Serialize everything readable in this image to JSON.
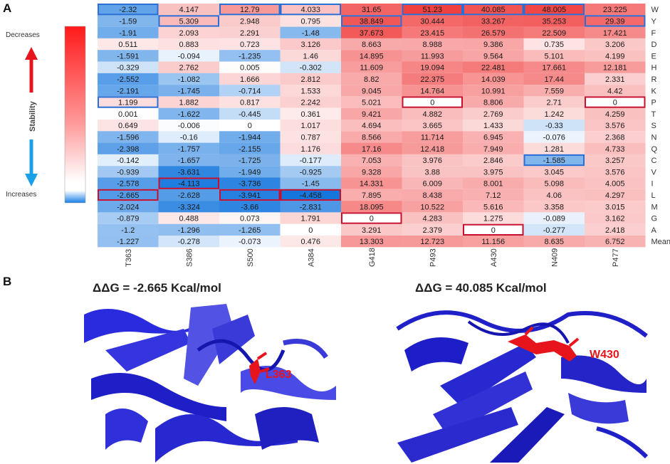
{
  "panels": {
    "a": "A",
    "b": "B"
  },
  "colorbar": {
    "top_label": "Decreases",
    "bottom_label": "Increases",
    "axis_label": "Stability",
    "colors": {
      "high": "#ff1a1a",
      "mid": "#ffffff",
      "low": "#1a7fe6"
    }
  },
  "chart_data": {
    "type": "heatmap",
    "columns": [
      "T363",
      "S386",
      "S500",
      "A384",
      "G418",
      "P493",
      "A430",
      "N409",
      "P477"
    ],
    "rows": [
      "W",
      "Y",
      "F",
      "D",
      "E",
      "H",
      "R",
      "K",
      "P",
      "T",
      "S",
      "N",
      "Q",
      "C",
      "V",
      "I",
      "L",
      "M",
      "G",
      "A",
      "Mean"
    ],
    "values": [
      [
        "-2.32",
        "4.147",
        "12.79",
        "4.033",
        "31.65",
        "51.23",
        "40.085",
        "48.005",
        "23.225"
      ],
      [
        "-1.59",
        "5.309",
        "2.948",
        "0.795",
        "38.849",
        "30.444",
        "33.267",
        "35.253",
        "29.39"
      ],
      [
        "-1.91",
        "2.093",
        "2.291",
        "-1.48",
        "37.673",
        "23.415",
        "26.579",
        "22.509",
        "17.421"
      ],
      [
        "0.511",
        "0.883",
        "0.723",
        "3.126",
        "8.663",
        "8.988",
        "9.386",
        "0.735",
        "3.206"
      ],
      [
        "-1.591",
        "-0.094",
        "-1.235",
        "1.46",
        "14.895",
        "11.993",
        "9.564",
        "5.101",
        "4.199"
      ],
      [
        "-0.329",
        "2.762",
        "0.005",
        "-0.302",
        "11.609",
        "19.094",
        "22.481",
        "17.661",
        "12.181"
      ],
      [
        "-2.552",
        "-1.082",
        "1.666",
        "2.812",
        "8.82",
        "22.375",
        "14.039",
        "17.44",
        "2.331"
      ],
      [
        "-2.191",
        "-1.745",
        "-0.714",
        "1.533",
        "9.045",
        "14.764",
        "10.991",
        "7.559",
        "4.42"
      ],
      [
        "1.199",
        "1.882",
        "0.817",
        "2.242",
        "5.021",
        "0",
        "8.806",
        "2.71",
        "0"
      ],
      [
        "0.001",
        "-1.622",
        "-0.445",
        "0.361",
        "9.421",
        "4.882",
        "2.769",
        "1.242",
        "4.259"
      ],
      [
        "0.649",
        "-0.006",
        "0",
        "1.017",
        "4.694",
        "3.665",
        "1.433",
        "-0.33",
        "3.576"
      ],
      [
        "-1.596",
        "-0.16",
        "-1.944",
        "0.787",
        "8.566",
        "11.714",
        "6.945",
        "-0.076",
        "2.368"
      ],
      [
        "-2.398",
        "-1.757",
        "-2.155",
        "1.176",
        "17.16",
        "12.418",
        "7.949",
        "1.281",
        "4.733"
      ],
      [
        "-0.142",
        "-1.657",
        "-1.725",
        "-0.177",
        "7.053",
        "3.976",
        "2.846",
        "-1.585",
        "3.257"
      ],
      [
        "-0.939",
        "-3.631",
        "-1.949",
        "-0.925",
        "9.328",
        "3.88",
        "3.975",
        "3.045",
        "3.576"
      ],
      [
        "-2.578",
        "-4.113",
        "-3.736",
        "-1.45",
        "14.331",
        "6.009",
        "8.001",
        "5.098",
        "4.005"
      ],
      [
        "-2.665",
        "-2.628",
        "-3.941",
        "-4.458",
        "7.895",
        "8.438",
        "7.12",
        "4.06",
        "4.297"
      ],
      [
        "-2.024",
        "-3.324",
        "-3.66",
        "-2.831",
        "18.095",
        "10.522",
        "5.616",
        "3.358",
        "3.015"
      ],
      [
        "-0.879",
        "0.488",
        "0.073",
        "1.791",
        "0",
        "4.283",
        "1.275",
        "-0.089",
        "3.162"
      ],
      [
        "-1.2",
        "-1.296",
        "-1.265",
        "0",
        "3.291",
        "2.379",
        "0",
        "-0.277",
        "2.418"
      ],
      [
        "-1.227",
        "-0.278",
        "-0.073",
        "0.476",
        "13.303",
        "12.723",
        "11.156",
        "8.635",
        "6.752"
      ]
    ],
    "highlight_blue": [
      [
        0,
        0
      ],
      [
        1,
        1
      ],
      [
        0,
        2
      ],
      [
        0,
        3
      ],
      [
        1,
        4
      ],
      [
        0,
        5
      ],
      [
        0,
        6
      ],
      [
        0,
        7
      ],
      [
        1,
        8
      ],
      [
        8,
        0
      ],
      [
        13,
        7
      ]
    ],
    "highlight_red": [
      [
        8,
        5
      ],
      [
        8,
        8
      ],
      [
        16,
        0
      ],
      [
        15,
        1
      ],
      [
        16,
        2
      ],
      [
        16,
        3
      ],
      [
        18,
        4
      ],
      [
        19,
        6
      ]
    ]
  },
  "structures": {
    "left": {
      "title": "ΔΔG = -2.665 Kcal/mol",
      "residue": "L363"
    },
    "right": {
      "title": "ΔΔG = 40.085 Kcal/mol",
      "residue": "W430"
    }
  }
}
